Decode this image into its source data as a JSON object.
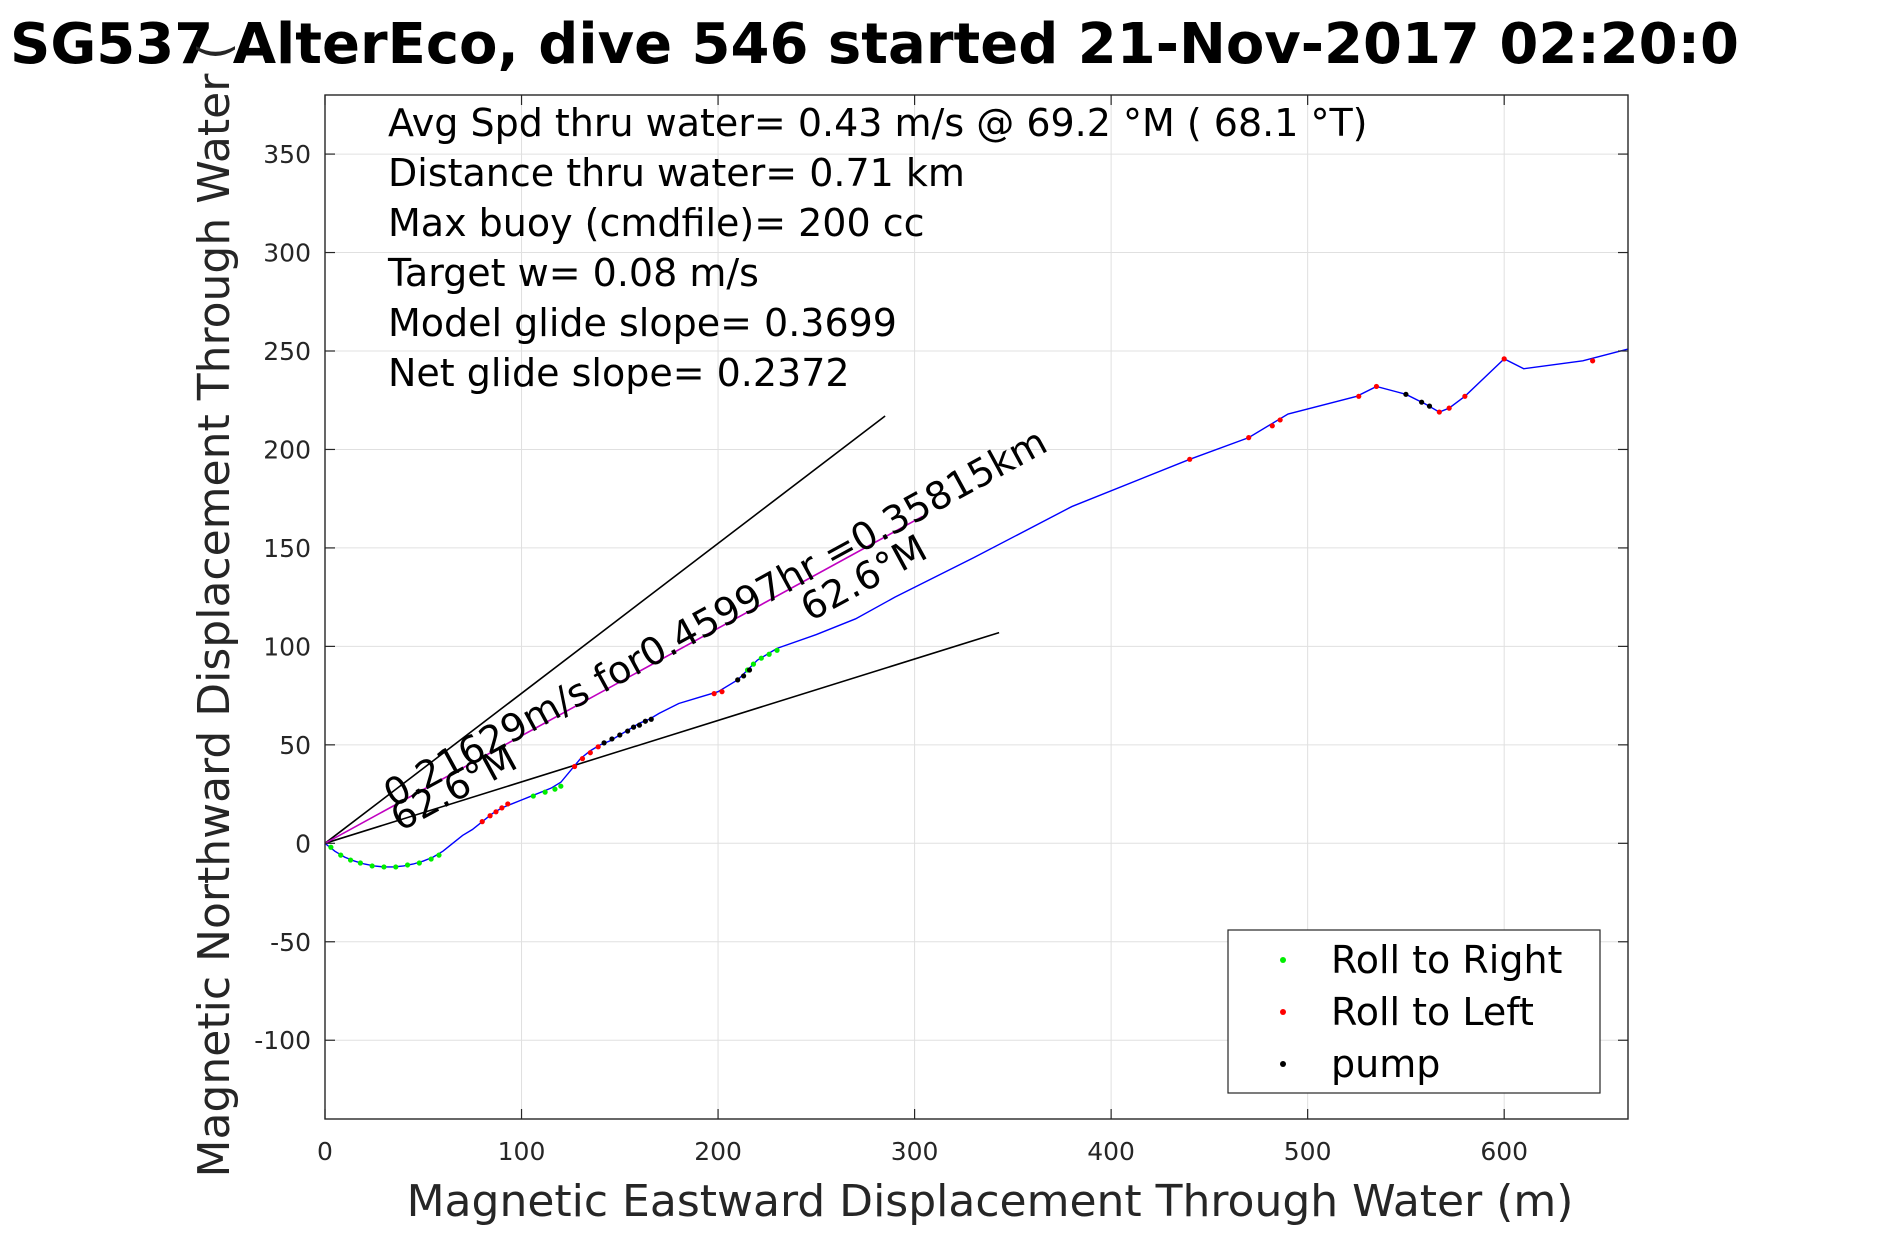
{
  "chart_data": {
    "type": "line",
    "title": "SG537 AlterEco, dive 546 started 21-Nov-2017 02:20:0",
    "xlabel": "Magnetic Eastward Displacement Through Water (m)",
    "ylabel": "Magnetic Northward Displacement Through Water (",
    "xlim": [
      0,
      663
    ],
    "ylim": [
      -140,
      380
    ],
    "xticks": [
      "0",
      "100",
      "200",
      "300",
      "400",
      "500",
      "600"
    ],
    "yticks": [
      "-100",
      "-50",
      "0",
      "50",
      "100",
      "150",
      "200",
      "250",
      "300",
      "350"
    ],
    "grid": true,
    "legend_placement": "bottom-right",
    "info_lines": [
      "Avg Spd thru water=  0.43 m/s @  69.2 °M ( 68.1 °T)",
      "Distance thru water=  0.71 km",
      "Max buoy (cmdfile)= 200 cc",
      "Target w= 0.08 m/s",
      "Model glide slope= 0.3699",
      "Net glide slope= 0.2372"
    ],
    "annotations": [
      "0.21629m/s for0.45997hr =0.35815km",
      "62.6°M",
      "62.6°M"
    ],
    "colors": {
      "track": "#0000ff",
      "roll_right": "#00ee00",
      "roll_left": "#ff0000",
      "pump": "#000000",
      "current": "#c000c0",
      "reference": "#000000"
    },
    "track": {
      "x": [
        0,
        5,
        10,
        15,
        20,
        25,
        30,
        35,
        40,
        45,
        50,
        55,
        60,
        65,
        70,
        75,
        80,
        85,
        90,
        95,
        100,
        105,
        110,
        115,
        120,
        125,
        130,
        135,
        140,
        145,
        150,
        155,
        160,
        165,
        170,
        180,
        190,
        200,
        210,
        215,
        220,
        230,
        250,
        270,
        290,
        330,
        380,
        440,
        470,
        490,
        525,
        535,
        550,
        560,
        567,
        572,
        580,
        600,
        610,
        640,
        663
      ],
      "y": [
        0,
        -4,
        -7,
        -9,
        -10.5,
        -11.5,
        -12,
        -12,
        -11.5,
        -10.5,
        -9,
        -7,
        -4,
        0,
        4,
        7,
        11,
        15,
        18,
        20,
        22,
        24,
        26,
        28,
        31,
        37,
        43,
        47,
        50,
        52,
        55,
        58,
        61,
        63,
        66,
        71,
        74,
        77,
        83,
        88,
        93,
        99,
        106,
        114,
        125,
        145,
        171,
        195,
        206,
        218,
        227,
        232,
        228,
        223,
        219,
        221,
        227,
        246,
        241,
        245,
        251
      ]
    },
    "series": [
      {
        "name": "Roll to Right",
        "x": [
          3,
          8,
          13,
          18,
          24,
          30,
          36,
          42,
          48,
          54,
          58,
          106,
          112,
          117,
          120,
          215,
          218,
          222,
          226,
          230
        ],
        "y": [
          -2,
          -6,
          -8.5,
          -10,
          -11.5,
          -12,
          -12,
          -11,
          -10,
          -8,
          -6,
          24,
          26,
          27.5,
          29,
          88,
          91,
          94,
          96,
          98
        ]
      },
      {
        "name": "Roll to Left",
        "x": [
          80,
          84,
          87,
          90,
          93,
          127,
          131,
          135,
          139,
          198,
          202,
          440,
          470,
          482,
          486,
          526,
          535,
          567,
          572,
          580,
          600,
          645
        ],
        "y": [
          11,
          14,
          16,
          18,
          20,
          39,
          43,
          46,
          49,
          76,
          77,
          195,
          206,
          212,
          215,
          227,
          232,
          219,
          221,
          227,
          246,
          245
        ]
      },
      {
        "name": "pump",
        "x": [
          142,
          146,
          150,
          154,
          157,
          160,
          163,
          166,
          210,
          213,
          216,
          550,
          558,
          562
        ],
        "y": [
          51,
          53,
          55,
          57,
          59,
          60,
          62,
          63,
          83,
          85,
          88,
          228,
          224,
          222
        ]
      }
    ],
    "current_line": {
      "x": [
        0,
        304
      ],
      "y": [
        0,
        166
      ]
    },
    "heading_lines": [
      {
        "x": [
          0,
          285
        ],
        "y": [
          0,
          217
        ]
      },
      {
        "x": [
          0,
          343
        ],
        "y": [
          0,
          107
        ]
      }
    ]
  }
}
